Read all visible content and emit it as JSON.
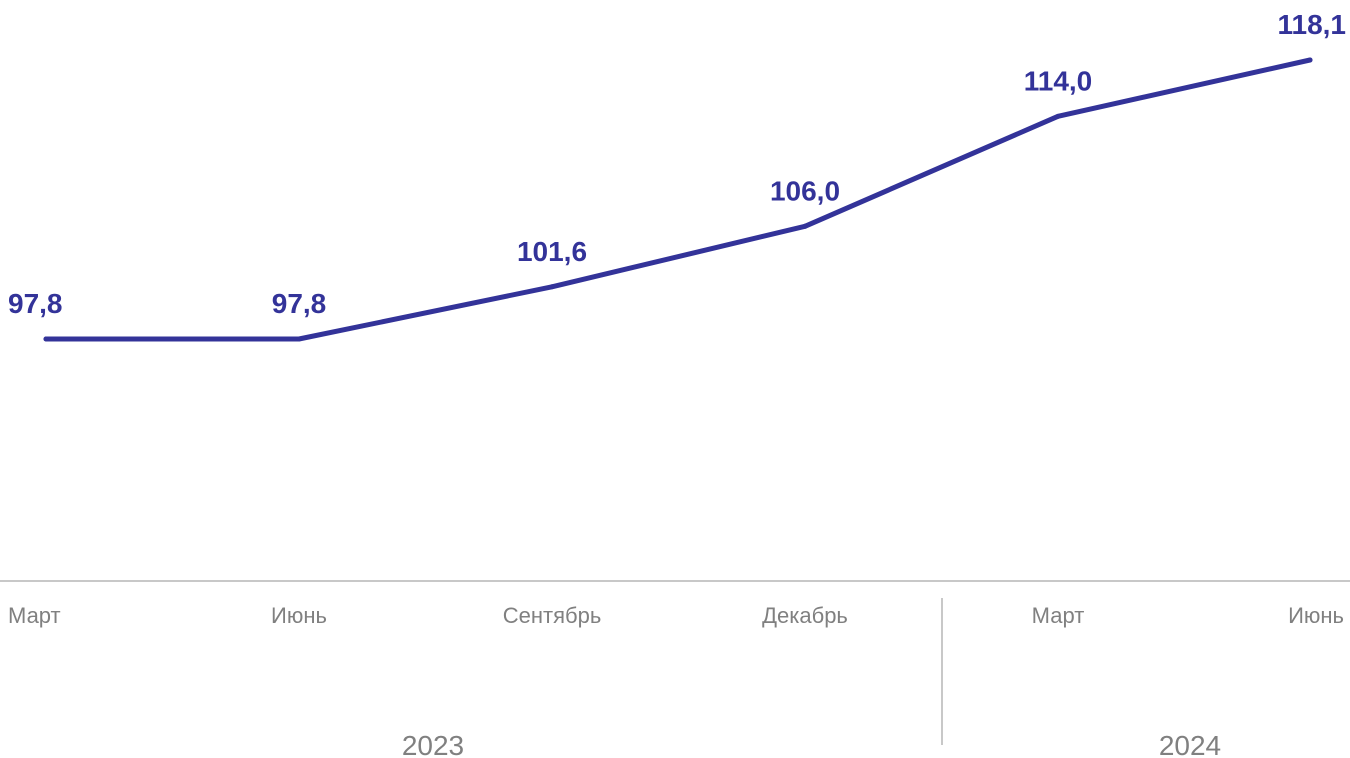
{
  "chart_data": {
    "type": "line",
    "categories": [
      "Март",
      "Июнь",
      "Сентябрь",
      "Декабрь",
      "Март",
      "Июнь"
    ],
    "groups": [
      {
        "label": "2023",
        "categories": [
          "Март",
          "Июнь",
          "Сентябрь",
          "Декабрь"
        ]
      },
      {
        "label": "2024",
        "categories": [
          "Март",
          "Июнь"
        ]
      }
    ],
    "series": [
      {
        "values": [
          97.8,
          97.8,
          101.6,
          106.0,
          114.0,
          118.1
        ]
      }
    ],
    "data_labels": [
      "97,8",
      "97,8",
      "101,6",
      "106,0",
      "114,0",
      "118,1"
    ],
    "title": "",
    "xlabel": "",
    "ylabel": "",
    "ylim": [
      80,
      120
    ],
    "grid": false,
    "legend": "none",
    "colors": {
      "line": "#333399",
      "data_label": "#333399",
      "axis": "#c8c8c8",
      "tick_label": "#808080"
    }
  }
}
